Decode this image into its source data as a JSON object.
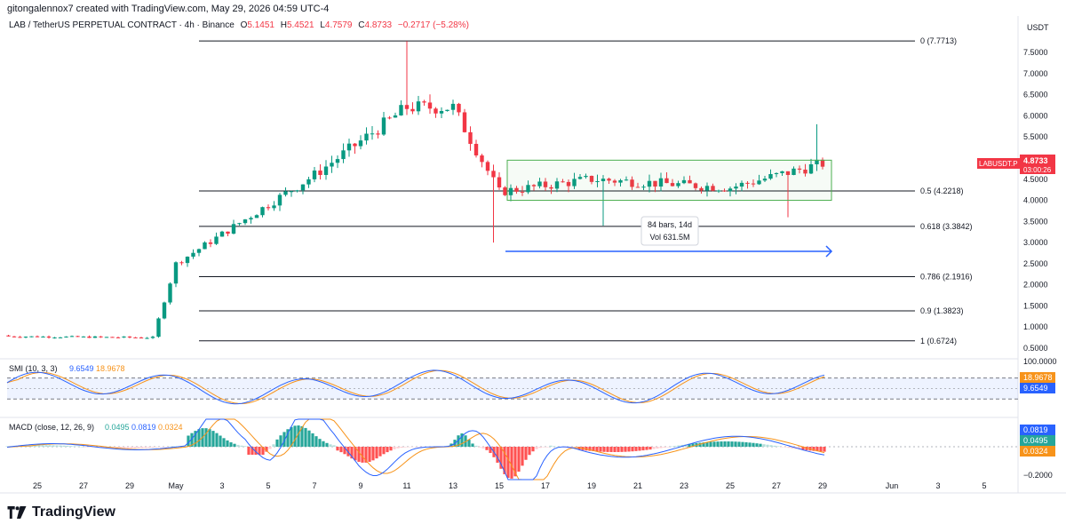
{
  "header": {
    "credit": "gitongalennox7 created with TradingView.com, May 29, 2026 04:59 UTC-4",
    "symbol": "LAB / TetherUS PERPETUAL CONTRACT · 4h · Binance",
    "ohlc": {
      "o_label": "O",
      "o": "5.1451",
      "h_label": "H",
      "h": "5.4521",
      "l_label": "L",
      "l": "4.7579",
      "c_label": "C",
      "c": "4.8733",
      "change": "−0.2717 (−5.28%)"
    }
  },
  "brand": {
    "name": "TradingView"
  },
  "colors": {
    "up": "#089981",
    "down": "#f23645",
    "blue": "#2962ff",
    "orange": "#f7931a",
    "accent_box": "#4caf50"
  },
  "chart_data": [
    {
      "type": "candlestick",
      "currency": "USDT",
      "ylim": [
        0.2,
        8.1
      ],
      "y_ticks": [
        "0.5000",
        "1.0000",
        "1.5000",
        "2.0000",
        "2.5000",
        "3.0000",
        "3.5000",
        "4.0000",
        "4.5000",
        "5.0000",
        "5.5000",
        "6.0000",
        "6.5000",
        "7.0000",
        "7.5000"
      ],
      "x_ticks": [
        "25",
        "27",
        "29",
        "May",
        "3",
        "5",
        "7",
        "9",
        "11",
        "13",
        "15",
        "17",
        "19",
        "21",
        "23",
        "25",
        "27",
        "29",
        "Jun",
        "3",
        "5"
      ],
      "price_label": {
        "symbol": "LABUSDT.P",
        "price": "4.8733",
        "countdown": "03:00:26"
      },
      "fib_levels": [
        {
          "label": "0 (7.7713)",
          "value": 7.7713
        },
        {
          "label": "0.5 (4.2218)",
          "value": 4.2218
        },
        {
          "label": "0.618 (3.3842)",
          "value": 3.3842
        },
        {
          "label": "0.786 (2.1916)",
          "value": 2.1916
        },
        {
          "label": "0.9 (1.3823)",
          "value": 1.3823
        },
        {
          "label": "1 (0.6724)",
          "value": 0.6724
        }
      ],
      "range_box": {
        "bars_label": "84 bars, 14d",
        "vol_label": "Vol 631.5M",
        "top": 4.95,
        "bottom": 4.0
      },
      "key_points": [
        {
          "date": "Apr 24",
          "price": 0.8
        },
        {
          "date": "Apr 30",
          "price": 0.75
        },
        {
          "date": "May 1",
          "price": 2.5
        },
        {
          "date": "May 7",
          "price": 4.6
        },
        {
          "date": "May 11",
          "price": 7.77
        },
        {
          "date": "May 13",
          "price": 6.6
        },
        {
          "date": "May 15",
          "price": 4.0
        },
        {
          "date": "May 19",
          "price": 4.2
        },
        {
          "date": "May 25",
          "price": 4.2
        },
        {
          "date": "May 29",
          "price": 4.87
        }
      ]
    },
    {
      "type": "line",
      "name": "SMI (10, 3, 3)",
      "values_label": [
        "9.6549",
        "18.9678"
      ],
      "top_tick": "100.0000",
      "series": [
        {
          "name": "SMI",
          "value": "9.6549",
          "color": "#2962ff"
        },
        {
          "name": "Signal",
          "value": "18.9678",
          "color": "#f7931a"
        }
      ]
    },
    {
      "type": "bar",
      "name": "MACD (close, 12, 26, 9)",
      "values_label": [
        "0.0495",
        "0.0819",
        "0.0324"
      ],
      "bottom_tick": "−0.2000",
      "series": [
        {
          "name": "Histogram",
          "value": "0.0495",
          "color": "#26a69a"
        },
        {
          "name": "MACD",
          "value": "0.0819",
          "color": "#2962ff"
        },
        {
          "name": "Signal",
          "value": "0.0324",
          "color": "#f7931a"
        }
      ]
    }
  ]
}
